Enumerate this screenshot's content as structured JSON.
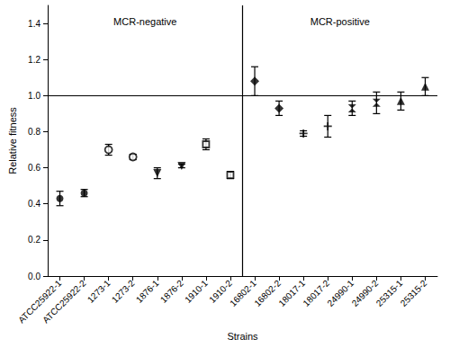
{
  "chart_data": {
    "type": "scatter",
    "x_label": "Strains",
    "y_label": "Relative fitness",
    "categories": [
      "ATCC25922-1",
      "ATCC25922-2",
      "1273-1",
      "1273-2",
      "1876-1",
      "1876-2",
      "1910-1",
      "1910-2",
      "16802-1",
      "16802-2",
      "18017-1",
      "18017-2",
      "24990-1",
      "24990-2",
      "25315-1",
      "25315-2"
    ],
    "series": [
      {
        "marker": "circle",
        "color": "#000000",
        "values": [
          0.43,
          0.46,
          null,
          null,
          null,
          null,
          null,
          null,
          null,
          null,
          null,
          null,
          null,
          null,
          null,
          null
        ],
        "errors": [
          0.04,
          0.02,
          null,
          null,
          null,
          null,
          null,
          null,
          null,
          null,
          null,
          null,
          null,
          null,
          null,
          null
        ]
      },
      {
        "marker": "circle-open",
        "color": "#000000",
        "values": [
          null,
          null,
          0.7,
          0.66,
          null,
          null,
          null,
          null,
          null,
          null,
          null,
          null,
          null,
          null,
          null,
          null
        ],
        "errors": [
          null,
          null,
          0.03,
          0.015,
          null,
          null,
          null,
          null,
          null,
          null,
          null,
          null,
          null,
          null,
          null,
          null
        ]
      },
      {
        "marker": "triangle-down",
        "color": "#000000",
        "values": [
          null,
          null,
          null,
          null,
          0.57,
          0.61,
          null,
          null,
          null,
          null,
          null,
          null,
          null,
          null,
          null,
          null
        ],
        "errors": [
          null,
          null,
          null,
          null,
          0.03,
          0.01,
          null,
          null,
          null,
          null,
          null,
          null,
          null,
          null,
          null,
          null
        ]
      },
      {
        "marker": "square-open",
        "color": "#000000",
        "values": [
          null,
          null,
          null,
          null,
          null,
          null,
          0.73,
          0.56,
          null,
          null,
          null,
          null,
          null,
          null,
          null,
          null
        ],
        "errors": [
          null,
          null,
          null,
          null,
          null,
          null,
          0.03,
          0.02,
          null,
          null,
          null,
          null,
          null,
          null,
          null,
          null
        ]
      },
      {
        "marker": "diamond",
        "color": "#000000",
        "values": [
          null,
          null,
          null,
          null,
          null,
          null,
          null,
          null,
          1.08,
          0.93,
          null,
          null,
          null,
          null,
          null,
          null
        ],
        "errors": [
          null,
          null,
          null,
          null,
          null,
          null,
          null,
          null,
          0.08,
          0.04,
          null,
          null,
          null,
          null,
          null,
          null
        ]
      },
      {
        "marker": "cross",
        "color": "#000000",
        "values": [
          null,
          null,
          null,
          null,
          null,
          null,
          null,
          null,
          null,
          null,
          0.79,
          0.83,
          null,
          null,
          null,
          null
        ],
        "errors": [
          null,
          null,
          null,
          null,
          null,
          null,
          null,
          null,
          null,
          null,
          0.015,
          0.06,
          null,
          null,
          null,
          null
        ]
      },
      {
        "marker": "hourglass",
        "color": "#000000",
        "values": [
          null,
          null,
          null,
          null,
          null,
          null,
          null,
          null,
          null,
          null,
          null,
          null,
          0.93,
          0.96,
          null,
          null
        ],
        "errors": [
          null,
          null,
          null,
          null,
          null,
          null,
          null,
          null,
          null,
          null,
          null,
          null,
          0.04,
          0.06,
          null,
          null
        ]
      },
      {
        "marker": "triangle",
        "color": "#000000",
        "values": [
          null,
          null,
          null,
          null,
          null,
          null,
          null,
          null,
          null,
          null,
          null,
          null,
          null,
          null,
          0.97,
          1.05
        ],
        "errors": [
          null,
          null,
          null,
          null,
          null,
          null,
          null,
          null,
          null,
          null,
          null,
          null,
          null,
          null,
          0.05,
          0.05
        ]
      }
    ],
    "ylim": [
      0,
      1.5
    ],
    "yticks": [
      {
        "value": 0,
        "label": "0.0"
      },
      0.2,
      0.4,
      0.6,
      0.8,
      {
        "value": 1,
        "label": "1.0"
      },
      1.2,
      1.4
    ],
    "grid": false,
    "reference_y": 1,
    "groups": [
      {
        "label": "MCR-negative",
        "count": 8
      },
      {
        "label": "MCR-positive",
        "count": 8
      }
    ]
  }
}
